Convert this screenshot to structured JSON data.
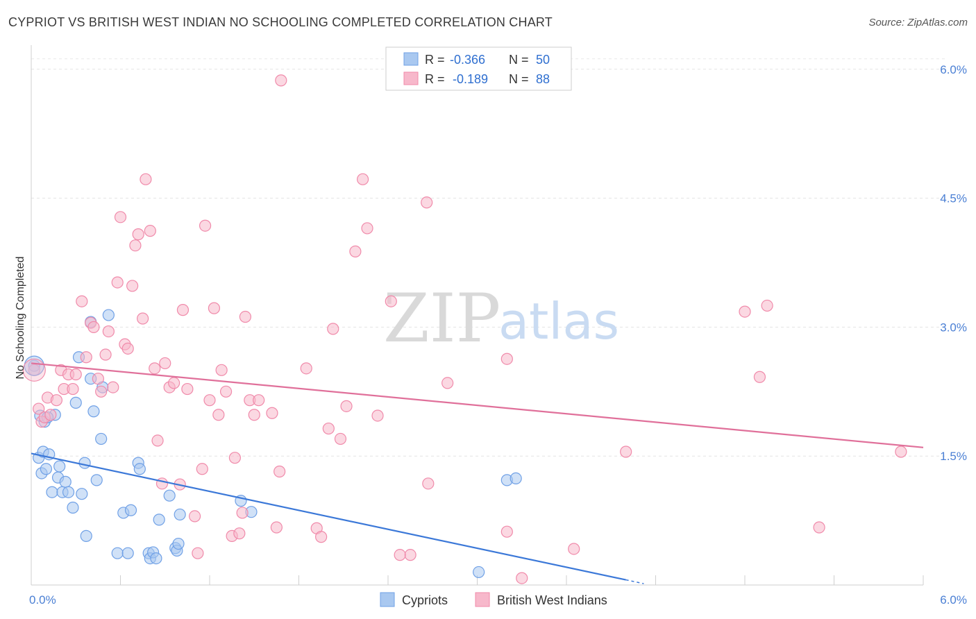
{
  "header": {
    "title": "CYPRIOT VS BRITISH WEST INDIAN NO SCHOOLING COMPLETED CORRELATION CHART",
    "source": "Source: ZipAtlas.com"
  },
  "watermark": {
    "zip": "ZIP",
    "atlas": "atlas"
  },
  "legend": {
    "rows": [
      {
        "r_label": "R =",
        "r_value": "-0.366",
        "n_label": "N =",
        "n_value": "50",
        "color": "#a9c8f0"
      },
      {
        "r_label": "R =",
        "r_value": "-0.189",
        "n_label": "N =",
        "n_value": "88",
        "color": "#f7b8cb"
      }
    ]
  },
  "bottom_legend": [
    {
      "label": "Cypriots",
      "color": "#a9c8f0"
    },
    {
      "label": "British West Indians",
      "color": "#f7b8cb"
    }
  ],
  "chart_data": {
    "type": "scatter",
    "ylabel": "No Schooling Completed",
    "xlim": [
      0,
      6
    ],
    "ylim": [
      0,
      6.2
    ],
    "x_tick_labels": [
      {
        "value": 0,
        "label": "0.0%"
      },
      {
        "value": 6,
        "label": "6.0%"
      }
    ],
    "y_tick_labels": [
      {
        "value": 1.5,
        "label": "1.5%"
      },
      {
        "value": 3.0,
        "label": "3.0%"
      },
      {
        "value": 4.5,
        "label": "4.5%"
      },
      {
        "value": 6.0,
        "label": "6.0%"
      }
    ],
    "grid": true,
    "series": [
      {
        "name": "Cypriots",
        "color": "#6fa0e6",
        "fill": "#a9c8f0",
        "trend": {
          "x": [
            0,
            4.0
          ],
          "y": [
            1.53,
            0.06
          ],
          "color": "#3b78d8"
        },
        "points": [
          [
            0.02,
            2.55
          ],
          [
            0.05,
            1.48
          ],
          [
            0.07,
            1.3
          ],
          [
            0.08,
            1.55
          ],
          [
            0.09,
            1.9
          ],
          [
            0.1,
            1.35
          ],
          [
            0.12,
            1.52
          ],
          [
            0.14,
            1.08
          ],
          [
            0.16,
            1.98
          ],
          [
            0.18,
            1.25
          ],
          [
            0.19,
            1.38
          ],
          [
            0.21,
            1.08
          ],
          [
            0.23,
            1.2
          ],
          [
            0.25,
            1.08
          ],
          [
            0.28,
            0.9
          ],
          [
            0.3,
            2.12
          ],
          [
            0.32,
            2.65
          ],
          [
            0.34,
            1.06
          ],
          [
            0.36,
            1.42
          ],
          [
            0.37,
            0.57
          ],
          [
            0.4,
            2.4
          ],
          [
            0.4,
            3.06
          ],
          [
            0.42,
            2.02
          ],
          [
            0.44,
            1.22
          ],
          [
            0.47,
            1.7
          ],
          [
            0.48,
            2.3
          ],
          [
            0.52,
            3.14
          ],
          [
            0.58,
            0.37
          ],
          [
            0.62,
            0.84
          ],
          [
            0.65,
            0.37
          ],
          [
            0.67,
            0.87
          ],
          [
            0.72,
            1.42
          ],
          [
            0.73,
            1.35
          ],
          [
            0.79,
            0.37
          ],
          [
            0.8,
            0.31
          ],
          [
            0.82,
            0.38
          ],
          [
            0.84,
            0.31
          ],
          [
            0.86,
            0.76
          ],
          [
            0.93,
            1.04
          ],
          [
            0.97,
            0.43
          ],
          [
            0.98,
            0.4
          ],
          [
            0.99,
            0.48
          ],
          [
            1.0,
            0.82
          ],
          [
            1.41,
            0.98
          ],
          [
            1.48,
            0.85
          ],
          [
            3.01,
            0.15
          ],
          [
            3.2,
            1.22
          ],
          [
            3.26,
            1.24
          ],
          [
            0.06,
            1.97
          ],
          [
            0.11,
            1.95
          ]
        ]
      },
      {
        "name": "British West Indians",
        "color": "#f08aaa",
        "fill": "#f7b8cb",
        "trend": {
          "x": [
            0,
            6.0
          ],
          "y": [
            2.58,
            1.6
          ],
          "color": "#e0709a"
        },
        "points": [
          [
            0.02,
            2.5
          ],
          [
            0.05,
            2.05
          ],
          [
            0.07,
            1.9
          ],
          [
            0.09,
            1.95
          ],
          [
            0.11,
            2.18
          ],
          [
            0.13,
            1.98
          ],
          [
            0.17,
            2.15
          ],
          [
            0.2,
            2.5
          ],
          [
            0.22,
            2.28
          ],
          [
            0.25,
            2.45
          ],
          [
            0.28,
            2.28
          ],
          [
            0.3,
            2.45
          ],
          [
            0.34,
            3.3
          ],
          [
            0.37,
            2.65
          ],
          [
            0.4,
            3.05
          ],
          [
            0.42,
            3.0
          ],
          [
            0.45,
            2.4
          ],
          [
            0.47,
            2.25
          ],
          [
            0.5,
            2.68
          ],
          [
            0.52,
            2.95
          ],
          [
            0.55,
            2.3
          ],
          [
            0.58,
            3.52
          ],
          [
            0.6,
            4.28
          ],
          [
            0.63,
            2.8
          ],
          [
            0.65,
            2.75
          ],
          [
            0.68,
            3.48
          ],
          [
            0.7,
            3.95
          ],
          [
            0.72,
            4.08
          ],
          [
            0.75,
            3.1
          ],
          [
            0.77,
            4.72
          ],
          [
            0.8,
            4.12
          ],
          [
            0.83,
            2.52
          ],
          [
            0.85,
            1.68
          ],
          [
            0.88,
            1.18
          ],
          [
            0.9,
            2.58
          ],
          [
            0.93,
            2.3
          ],
          [
            0.96,
            2.35
          ],
          [
            1.0,
            1.17
          ],
          [
            1.02,
            3.2
          ],
          [
            1.05,
            2.28
          ],
          [
            1.1,
            0.8
          ],
          [
            1.12,
            0.37
          ],
          [
            1.15,
            1.35
          ],
          [
            1.17,
            4.18
          ],
          [
            1.2,
            2.15
          ],
          [
            1.23,
            3.22
          ],
          [
            1.26,
            1.98
          ],
          [
            1.28,
            2.5
          ],
          [
            1.31,
            2.25
          ],
          [
            1.35,
            0.57
          ],
          [
            1.37,
            1.48
          ],
          [
            1.4,
            0.6
          ],
          [
            1.42,
            0.84
          ],
          [
            1.44,
            3.12
          ],
          [
            1.47,
            2.15
          ],
          [
            1.5,
            1.98
          ],
          [
            1.53,
            2.15
          ],
          [
            1.62,
            2.0
          ],
          [
            1.65,
            0.67
          ],
          [
            1.67,
            1.32
          ],
          [
            1.68,
            5.87
          ],
          [
            1.85,
            2.52
          ],
          [
            1.92,
            0.66
          ],
          [
            1.95,
            0.56
          ],
          [
            2.0,
            1.82
          ],
          [
            2.03,
            2.98
          ],
          [
            2.08,
            1.7
          ],
          [
            2.12,
            2.08
          ],
          [
            2.18,
            3.88
          ],
          [
            2.23,
            4.72
          ],
          [
            2.26,
            4.15
          ],
          [
            2.33,
            1.97
          ],
          [
            2.42,
            3.3
          ],
          [
            2.55,
            0.35
          ],
          [
            2.66,
            4.45
          ],
          [
            2.67,
            1.18
          ],
          [
            2.8,
            2.35
          ],
          [
            3.2,
            0.62
          ],
          [
            3.2,
            2.63
          ],
          [
            3.3,
            0.08
          ],
          [
            3.65,
            0.42
          ],
          [
            4.0,
            1.55
          ],
          [
            4.8,
            3.18
          ],
          [
            4.9,
            2.42
          ],
          [
            4.95,
            3.25
          ],
          [
            5.3,
            0.67
          ],
          [
            5.85,
            1.55
          ],
          [
            2.48,
            0.35
          ]
        ]
      }
    ]
  }
}
